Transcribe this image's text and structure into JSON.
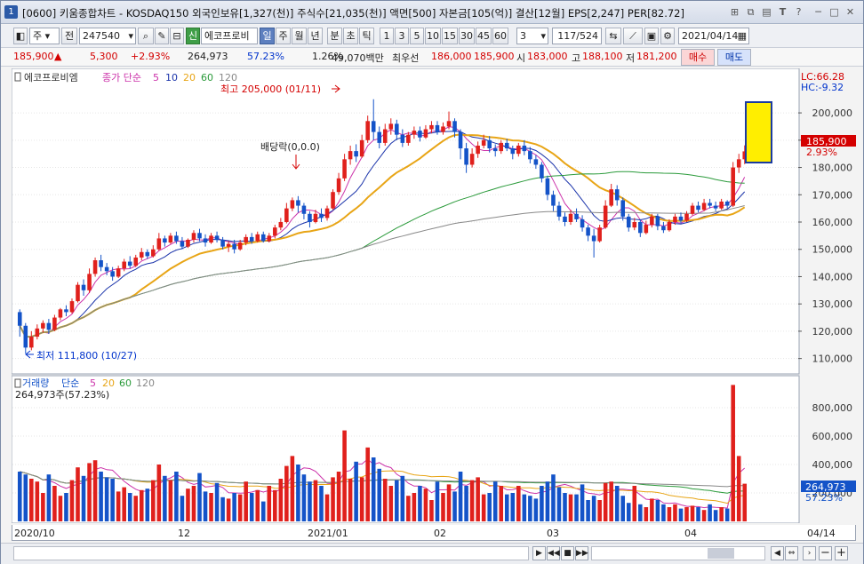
{
  "window": {
    "number": "1",
    "title": "[0600] 키움종합차트 - KOSDAQ150 외국인보유[1,327(천)] 주식수[21,035(천)] 액면[500] 자본금[105(억)] 결산[12월] EPS[2,247] PER[82.72]"
  },
  "toolbar": {
    "type_select": "주",
    "prev_label": "전",
    "code": "247540",
    "badge_new": "신",
    "stock_name": "에코프로비",
    "periods": [
      "일",
      "주",
      "월",
      "년",
      "분",
      "초",
      "틱"
    ],
    "active_period": "일",
    "nums": [
      "1",
      "3",
      "5",
      "10",
      "15",
      "30",
      "45",
      "60"
    ],
    "count_value": "3",
    "range": "117/524",
    "date": "2021/04/14"
  },
  "quote": {
    "price": "185,900",
    "arrow": "▲",
    "change": "5,300",
    "pct": "+2.93%",
    "volume": "264,973",
    "vol_pct": "57.23%",
    "ratio": "1.26%",
    "amount": "49,070백만",
    "priority_label": "최우선",
    "ask": "186,000",
    "bid": "185,900",
    "open_label": "시",
    "open": "183,000",
    "high_label": "고",
    "high": "188,100",
    "low_label": "저",
    "low": "181,200",
    "buy_label": "매수",
    "sell_label": "매도"
  },
  "price_panel": {
    "name": "에코프로비엠",
    "ma_label": "종가 단순",
    "ma_periods": [
      "5",
      "10",
      "20",
      "60",
      "120"
    ],
    "lc": "LC:66.28",
    "hc": "HC:-9.32",
    "high_annot": "최고 205,000 (01/11)",
    "low_annot": "최저 111,800 (10/27)",
    "div_annot": "배당락(0,0.0)",
    "current_price": "185,900",
    "current_pct": "2.93%",
    "y_ticks": [
      "200,000",
      "190,000",
      "180,000",
      "170,000",
      "160,000",
      "150,000",
      "140,000",
      "130,000",
      "120,000",
      "110,000"
    ]
  },
  "volume_panel": {
    "name": "거래량",
    "ma_label": "단순",
    "ma_periods": [
      "5",
      "20",
      "60",
      "120"
    ],
    "info": "264,973주(57.23%)",
    "y_ticks": [
      "800,000",
      "600,000",
      "400,000",
      "200,000"
    ],
    "current": "264,973",
    "current_pct": "57.23%"
  },
  "x_axis": {
    "labels": [
      "2020/10",
      "12",
      "2021/01",
      "02",
      "03",
      "04"
    ],
    "right_label": "04/14"
  },
  "colors": {
    "up": "#e0201c",
    "down": "#1453c8",
    "ma5": "#cc33aa",
    "ma10": "#1a33aa",
    "ma20": "#e8a516",
    "ma60": "#2a9a3a",
    "ma120": "#888888"
  },
  "chart_data": {
    "type": "candlestick",
    "y_range": [
      105000,
      215000
    ],
    "volume_range": [
      0,
      1000000
    ],
    "candles": [
      [
        127000,
        122000,
        128000,
        118000
      ],
      [
        122000,
        114000,
        123000,
        111800
      ],
      [
        114000,
        118000,
        120000,
        113000
      ],
      [
        118000,
        121000,
        122500,
        117000
      ],
      [
        121000,
        123000,
        124000,
        119500
      ],
      [
        123000,
        120500,
        124500,
        119000
      ],
      [
        120500,
        125000,
        126000,
        120000
      ],
      [
        125000,
        128000,
        128500,
        124000
      ],
      [
        128000,
        127000,
        129500,
        125500
      ],
      [
        127000,
        131000,
        132000,
        126500
      ],
      [
        131000,
        137000,
        138000,
        130500
      ],
      [
        137000,
        135000,
        139000,
        133000
      ],
      [
        135000,
        141000,
        143000,
        134000
      ],
      [
        141000,
        146000,
        147000,
        140000
      ],
      [
        146000,
        143500,
        148000,
        142000
      ],
      [
        143500,
        142000,
        145000,
        140500
      ],
      [
        142000,
        140000,
        143500,
        138500
      ],
      [
        140000,
        143000,
        144000,
        139500
      ],
      [
        143000,
        145500,
        146500,
        142000
      ],
      [
        145500,
        144000,
        147500,
        143000
      ],
      [
        144000,
        147000,
        148000,
        143500
      ],
      [
        147000,
        149000,
        150500,
        146000
      ],
      [
        149000,
        147500,
        150000,
        146500
      ],
      [
        147500,
        150000,
        151500,
        147000
      ],
      [
        150000,
        154000,
        156000,
        149500
      ],
      [
        154000,
        152500,
        155000,
        151000
      ],
      [
        152500,
        155000,
        156000,
        152000
      ],
      [
        155000,
        153000,
        156500,
        152000
      ],
      [
        153000,
        151000,
        154500,
        150000
      ],
      [
        151000,
        153500,
        154000,
        150500
      ],
      [
        153500,
        156000,
        157000,
        152500
      ],
      [
        156000,
        154000,
        157500,
        153000
      ],
      [
        154000,
        152500,
        155500,
        151000
      ],
      [
        152500,
        155000,
        156000,
        152000
      ],
      [
        155000,
        153500,
        156500,
        152500
      ],
      [
        153500,
        151000,
        154500,
        150000
      ],
      [
        151000,
        152000,
        153000,
        149000
      ],
      [
        152000,
        150000,
        153500,
        148500
      ],
      [
        150000,
        152500,
        153500,
        149500
      ],
      [
        152500,
        154500,
        155500,
        151500
      ],
      [
        154500,
        153000,
        156000,
        152000
      ],
      [
        153000,
        155500,
        156500,
        152500
      ],
      [
        155500,
        153000,
        156500,
        152500
      ],
      [
        153000,
        155000,
        156000,
        152500
      ],
      [
        155000,
        158000,
        159000,
        154000
      ],
      [
        158000,
        160000,
        161500,
        157000
      ],
      [
        160000,
        165000,
        167000,
        159500
      ],
      [
        165000,
        168000,
        169000,
        164000
      ],
      [
        168000,
        166000,
        169500,
        163500
      ],
      [
        166000,
        163000,
        167000,
        161000
      ],
      [
        163000,
        160000,
        164000,
        158000
      ],
      [
        160000,
        163000,
        164500,
        159500
      ],
      [
        163000,
        161500,
        165000,
        160000
      ],
      [
        161500,
        165000,
        166000,
        160500
      ],
      [
        165000,
        171000,
        172000,
        164500
      ],
      [
        171000,
        176000,
        178000,
        170000
      ],
      [
        176000,
        183000,
        185000,
        175000
      ],
      [
        183000,
        186000,
        188000,
        181000
      ],
      [
        186000,
        184000,
        188500,
        182000
      ],
      [
        184000,
        190000,
        192000,
        183500
      ],
      [
        190000,
        197000,
        199000,
        189000
      ],
      [
        197000,
        193000,
        205000,
        190000
      ],
      [
        193000,
        189000,
        195000,
        187000
      ],
      [
        189000,
        194000,
        196000,
        188000
      ],
      [
        194000,
        196000,
        198000,
        192000
      ],
      [
        196000,
        192000,
        197500,
        190000
      ],
      [
        192000,
        189000,
        194000,
        187500
      ],
      [
        189000,
        192000,
        193000,
        188000
      ],
      [
        192000,
        193500,
        195000,
        190500
      ],
      [
        193500,
        191000,
        195000,
        189500
      ],
      [
        191000,
        194000,
        195500,
        190500
      ],
      [
        194000,
        195500,
        197000,
        192500
      ],
      [
        195500,
        193000,
        197000,
        192000
      ],
      [
        193000,
        195000,
        196500,
        192000
      ],
      [
        195000,
        197000,
        200500,
        194000
      ],
      [
        197000,
        193000,
        198000,
        191000
      ],
      [
        193000,
        187000,
        194000,
        183000
      ],
      [
        187000,
        181000,
        189000,
        178000
      ],
      [
        181000,
        185000,
        187000,
        180000
      ],
      [
        185000,
        188000,
        189500,
        183500
      ],
      [
        188000,
        190000,
        192000,
        187000
      ],
      [
        190000,
        187000,
        191500,
        185500
      ],
      [
        187000,
        186000,
        188500,
        184000
      ],
      [
        186000,
        189000,
        190000,
        185000
      ],
      [
        189000,
        187000,
        190500,
        186000
      ],
      [
        187000,
        185000,
        188000,
        183000
      ],
      [
        185000,
        188000,
        189000,
        184000
      ],
      [
        188000,
        186000,
        190000,
        184500
      ],
      [
        186000,
        183000,
        187500,
        181500
      ],
      [
        183000,
        181000,
        184500,
        179500
      ],
      [
        181000,
        176000,
        182000,
        174500
      ],
      [
        176000,
        170000,
        177000,
        168000
      ],
      [
        170000,
        166000,
        171500,
        164000
      ],
      [
        166000,
        162000,
        167500,
        160500
      ],
      [
        162000,
        160000,
        163500,
        158500
      ],
      [
        160000,
        163000,
        164500,
        159000
      ],
      [
        163000,
        161000,
        165000,
        160000
      ],
      [
        161000,
        158000,
        162500,
        156500
      ],
      [
        158000,
        155000,
        159000,
        153000
      ],
      [
        155000,
        153000,
        157500,
        147000
      ],
      [
        153000,
        158000,
        159000,
        152500
      ],
      [
        158000,
        166000,
        168000,
        157500
      ],
      [
        166000,
        172000,
        174000,
        165500
      ],
      [
        172000,
        168000,
        173500,
        166000
      ],
      [
        168000,
        162000,
        169000,
        160500
      ],
      [
        162000,
        158000,
        163000,
        156500
      ],
      [
        158000,
        160000,
        161500,
        157000
      ],
      [
        160000,
        156000,
        161000,
        154500
      ],
      [
        156000,
        159000,
        160500,
        155500
      ],
      [
        159000,
        162000,
        163000,
        158000
      ],
      [
        162000,
        158500,
        163000,
        157000
      ],
      [
        158500,
        157000,
        160000,
        156000
      ],
      [
        157000,
        160000,
        161000,
        156500
      ],
      [
        160000,
        162000,
        163000,
        159000
      ],
      [
        162000,
        160500,
        163500,
        159500
      ],
      [
        160500,
        163000,
        164000,
        160000
      ],
      [
        163000,
        166000,
        167000,
        162500
      ],
      [
        166000,
        164500,
        167500,
        163500
      ],
      [
        164500,
        167000,
        168500,
        164000
      ],
      [
        167000,
        166000,
        168500,
        165000
      ],
      [
        166000,
        165000,
        167500,
        164000
      ],
      [
        165000,
        167500,
        168500,
        164500
      ],
      [
        167500,
        166000,
        168000,
        165000
      ],
      [
        166000,
        180000,
        182000,
        165500
      ],
      [
        180000,
        183000,
        185000,
        178000
      ],
      [
        183000,
        185900,
        188100,
        181200
      ]
    ],
    "volumes": [
      350000,
      330000,
      300000,
      280000,
      200000,
      330000,
      250000,
      180000,
      200000,
      290000,
      380000,
      320000,
      410000,
      430000,
      350000,
      310000,
      300000,
      210000,
      240000,
      200000,
      180000,
      220000,
      230000,
      290000,
      400000,
      320000,
      290000,
      350000,
      180000,
      230000,
      250000,
      340000,
      210000,
      200000,
      270000,
      170000,
      160000,
      200000,
      190000,
      280000,
      200000,
      220000,
      140000,
      250000,
      220000,
      300000,
      390000,
      460000,
      400000,
      330000,
      280000,
      290000,
      250000,
      190000,
      310000,
      350000,
      640000,
      300000,
      420000,
      310000,
      520000,
      450000,
      370000,
      300000,
      250000,
      290000,
      320000,
      180000,
      200000,
      250000,
      230000,
      150000,
      280000,
      200000,
      260000,
      210000,
      350000,
      250000,
      290000,
      310000,
      190000,
      200000,
      280000,
      250000,
      190000,
      200000,
      250000,
      190000,
      180000,
      160000,
      250000,
      280000,
      330000,
      240000,
      200000,
      190000,
      190000,
      260000,
      150000,
      180000,
      150000,
      270000,
      280000,
      250000,
      180000,
      130000,
      250000,
      120000,
      100000,
      160000,
      150000,
      120000,
      100000,
      120000,
      90000,
      100000,
      110000,
      100000,
      80000,
      120000,
      80000,
      100000,
      90000,
      960000,
      460000,
      264973
    ]
  }
}
